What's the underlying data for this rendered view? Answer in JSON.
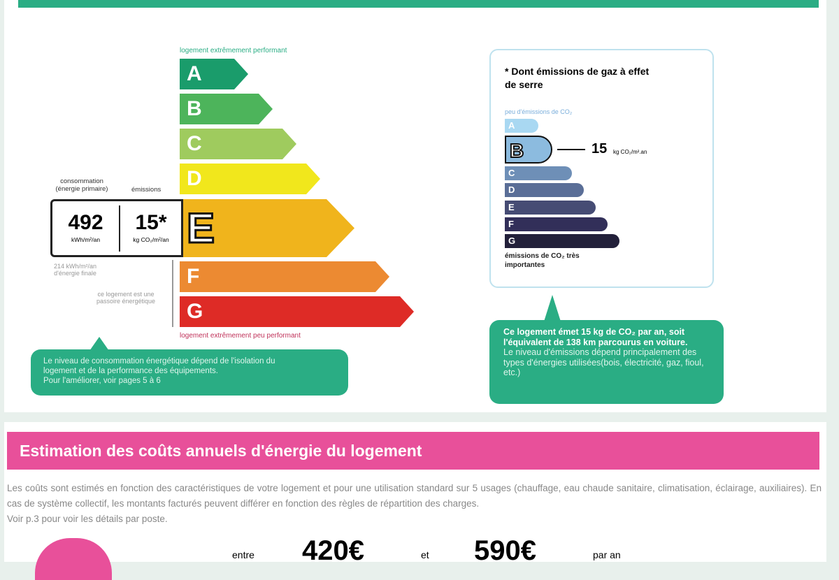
{
  "energy": {
    "top_label": "logement extrêmement performant",
    "bottom_label": "logement extrêmement peu performant",
    "classes": [
      "A",
      "B",
      "C",
      "D",
      "E",
      "F",
      "G"
    ],
    "colors": [
      "#1a9c6b",
      "#4db45b",
      "#9fcb5e",
      "#f1e71c",
      "#f0b41c",
      "#ec8a32",
      "#de2b26"
    ],
    "current": "E",
    "consumption_label": "consommation (énergie primaire)",
    "emissions_label": "émissions",
    "consumption_value": "492",
    "consumption_unit": "kWh/m²/an",
    "emissions_value": "15*",
    "emissions_unit": "kg CO₂/m²/an",
    "final_energy": "214 kWh/m²/an d'énergie finale",
    "passoire": "ce logement est une passoire énergétique",
    "bubble_lines": [
      "Le niveau de consommation énergétique dépend de l'isolation du",
      "logement et de la performance des équipements.",
      "Pour l'améliorer, voir pages 5 à 6"
    ]
  },
  "ges": {
    "title": "* Dont émissions de gaz à effet de serre",
    "top_label": "peu d'émissions de CO₂",
    "bottom_label": "émissions de CO₂ très importantes",
    "classes": [
      "A",
      "B",
      "C",
      "D",
      "E",
      "F",
      "G"
    ],
    "colors": [
      "#a9d8f2",
      "#8cbbdf",
      "#6e8fb7",
      "#5a6e97",
      "#464c74",
      "#322f59",
      "#22203a"
    ],
    "current": "B",
    "value": "15",
    "unit": "kg CO₂/m².an",
    "bubble_bold": "Ce logement émet 15 kg de CO₂ par an, soit l'équivalent de 138 km parcourus en voiture.",
    "bubble_text": "Le niveau d'émissions dépend principalement des types d'énergies utilisées(bois, électricité, gaz, fioul, etc.)"
  },
  "costs": {
    "title": "Estimation des coûts annuels d'énergie du logement",
    "description": "Les coûts sont estimés en fonction des caractéristiques de votre logement et pour une utilisation standard sur 5 usages (chauffage, eau chaude sanitaire, climatisation, éclairage, auxiliaires). En cas de système collectif, les montants facturés peuvent différer en fonction des règles de répartition des charges.",
    "see_more": "Voir p.3 pour voir les détails par poste.",
    "between": "entre",
    "min": "420€",
    "and": "et",
    "max": "590€",
    "per_year": "par an"
  }
}
